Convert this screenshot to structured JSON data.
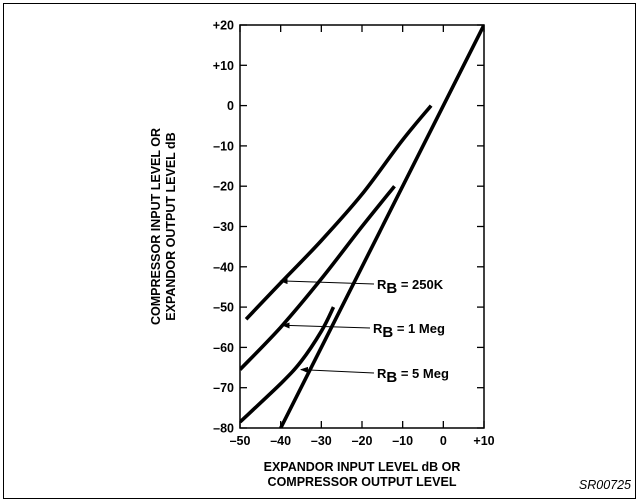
{
  "chart_data": {
    "type": "line",
    "xlabel": [
      "EXPANDOR INPUT LEVEL dB OR",
      "COMPRESSOR OUTPUT LEVEL"
    ],
    "ylabel": [
      "COMPRESSOR INPUT LEVEL OR",
      "EXPANDOR OUTPUT LEVEL dB"
    ],
    "xlim": [
      -50,
      10
    ],
    "ylim": [
      -80,
      20
    ],
    "x_ticks": [
      -50,
      -40,
      -30,
      -20,
      -10,
      0,
      10
    ],
    "x_tick_labels": [
      "–50",
      "–40",
      "–30",
      "–20",
      "–10",
      "0",
      "+10"
    ],
    "y_ticks": [
      20,
      10,
      0,
      -10,
      -20,
      -30,
      -40,
      -50,
      -60,
      -70,
      -80
    ],
    "y_tick_labels": [
      "+20",
      "+10",
      "0",
      "–10",
      "–20",
      "–30",
      "–40",
      "–50",
      "–60",
      "–70",
      "–80"
    ],
    "grid": false,
    "series": [
      {
        "name": "",
        "x": [
          -40,
          10
        ],
        "y": [
          -80,
          20
        ]
      },
      {
        "x": [
          -48.5,
          -40,
          -30,
          -20,
          -10,
          -3
        ],
        "y": [
          -53,
          -44,
          -33.5,
          -22,
          -8.5,
          0
        ]
      },
      {
        "x": [
          -50,
          -40,
          -30,
          -20,
          -12
        ],
        "y": [
          -65.5,
          -55,
          -43,
          -30,
          -20
        ]
      },
      {
        "x": [
          -50,
          -40,
          -35,
          -30,
          -27
        ],
        "y": [
          -78.5,
          -69,
          -63.5,
          -56,
          -50
        ]
      }
    ],
    "annotations": [
      {
        "sub_main": "R",
        "sub": "B",
        "rest": " = 250K",
        "target": [
          -41,
          -43.5
        ]
      },
      {
        "sub_main": "R",
        "sub": "B",
        "rest": " = 1 Meg",
        "target": [
          -40.5,
          -54.5
        ]
      },
      {
        "sub_main": "R",
        "sub": "B",
        "rest": " = 5 Meg",
        "target": [
          -36,
          -65.5
        ]
      }
    ]
  },
  "footer": {
    "code": "SR00725"
  }
}
